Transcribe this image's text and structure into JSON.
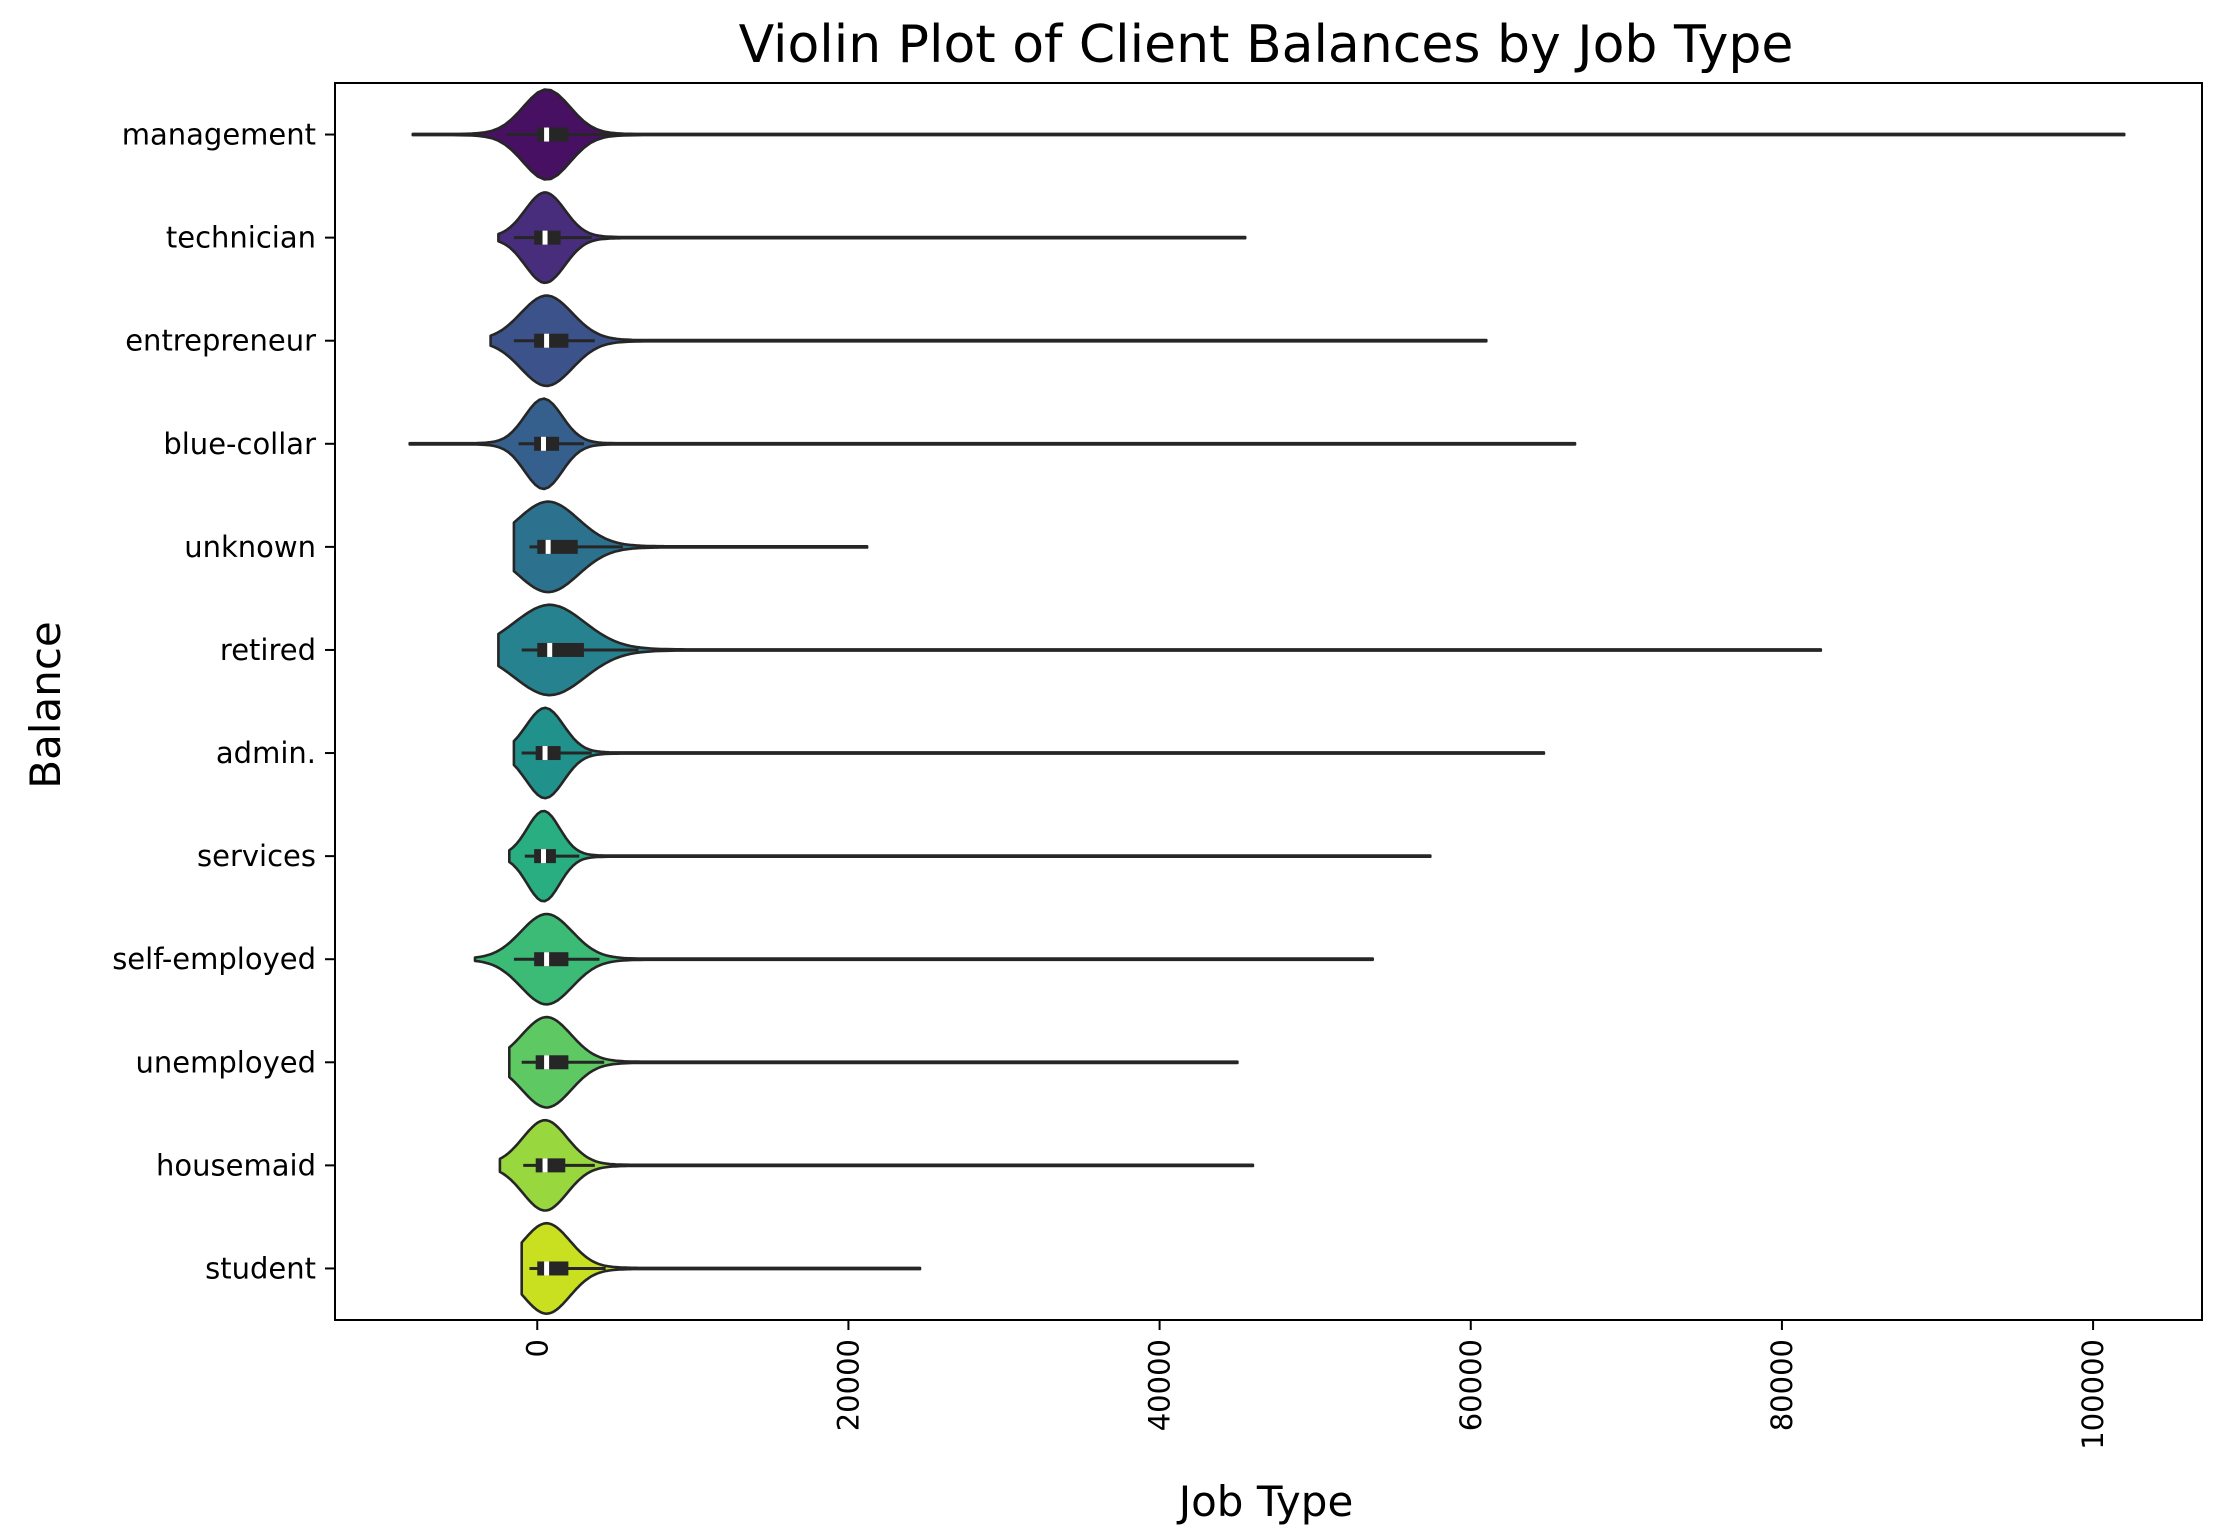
{
  "chart_data": {
    "type": "violin",
    "title": "Violin Plot of Client Balances by Job Type",
    "xlabel": "Job Type",
    "ylabel": "Balance",
    "xlim": [
      -13000,
      107000
    ],
    "xticks": [
      0,
      20000,
      40000,
      60000,
      80000,
      100000
    ],
    "xtick_labels": [
      "0",
      "20000",
      "40000",
      "60000",
      "80000",
      "100000"
    ],
    "palette": "viridis",
    "categories": [
      {
        "name": "management",
        "min": -8000,
        "q1": 0,
        "median": 600,
        "q3": 2000,
        "whisker_low": -2000,
        "whisker_high": 5000,
        "max": 102000,
        "color": "#471063"
      },
      {
        "name": "technician",
        "min": -2500,
        "q1": -200,
        "median": 500,
        "q3": 1500,
        "whisker_low": -1500,
        "whisker_high": 3500,
        "max": 45500,
        "color": "#472d7b"
      },
      {
        "name": "entrepreneur",
        "min": -3000,
        "q1": -200,
        "median": 600,
        "q3": 2000,
        "whisker_low": -1500,
        "whisker_high": 3700,
        "max": 61000,
        "color": "#3b528b"
      },
      {
        "name": "blue-collar",
        "min": -8200,
        "q1": -200,
        "median": 400,
        "q3": 1400,
        "whisker_low": -1200,
        "whisker_high": 3000,
        "max": 66700,
        "color": "#355f8d"
      },
      {
        "name": "unknown",
        "min": -1500,
        "q1": 0,
        "median": 700,
        "q3": 2600,
        "whisker_low": -500,
        "whisker_high": 5500,
        "max": 21200,
        "color": "#2c728e"
      },
      {
        "name": "retired",
        "min": -2500,
        "q1": 0,
        "median": 800,
        "q3": 3000,
        "whisker_low": -1000,
        "whisker_high": 6500,
        "max": 82500,
        "color": "#26828e"
      },
      {
        "name": "admin.",
        "min": -1500,
        "q1": -100,
        "median": 500,
        "q3": 1500,
        "whisker_low": -1000,
        "whisker_high": 3500,
        "max": 64700,
        "color": "#21918c"
      },
      {
        "name": "services",
        "min": -1800,
        "q1": -200,
        "median": 400,
        "q3": 1200,
        "whisker_low": -800,
        "whisker_high": 2700,
        "max": 57400,
        "color": "#28ae80"
      },
      {
        "name": "self-employed",
        "min": -4000,
        "q1": -200,
        "median": 600,
        "q3": 2000,
        "whisker_low": -1500,
        "whisker_high": 4000,
        "max": 53700,
        "color": "#3bbb75"
      },
      {
        "name": "unemployed",
        "min": -1800,
        "q1": -100,
        "median": 600,
        "q3": 2000,
        "whisker_low": -1000,
        "whisker_high": 4300,
        "max": 45000,
        "color": "#5ec962"
      },
      {
        "name": "housemaid",
        "min": -2400,
        "q1": -100,
        "median": 500,
        "q3": 1800,
        "whisker_low": -900,
        "whisker_high": 3700,
        "max": 46000,
        "color": "#98d83e"
      },
      {
        "name": "student",
        "min": -1000,
        "q1": 0,
        "median": 600,
        "q3": 2000,
        "whisker_low": -500,
        "whisker_high": 4400,
        "max": 24600,
        "color": "#c8e020"
      }
    ]
  }
}
